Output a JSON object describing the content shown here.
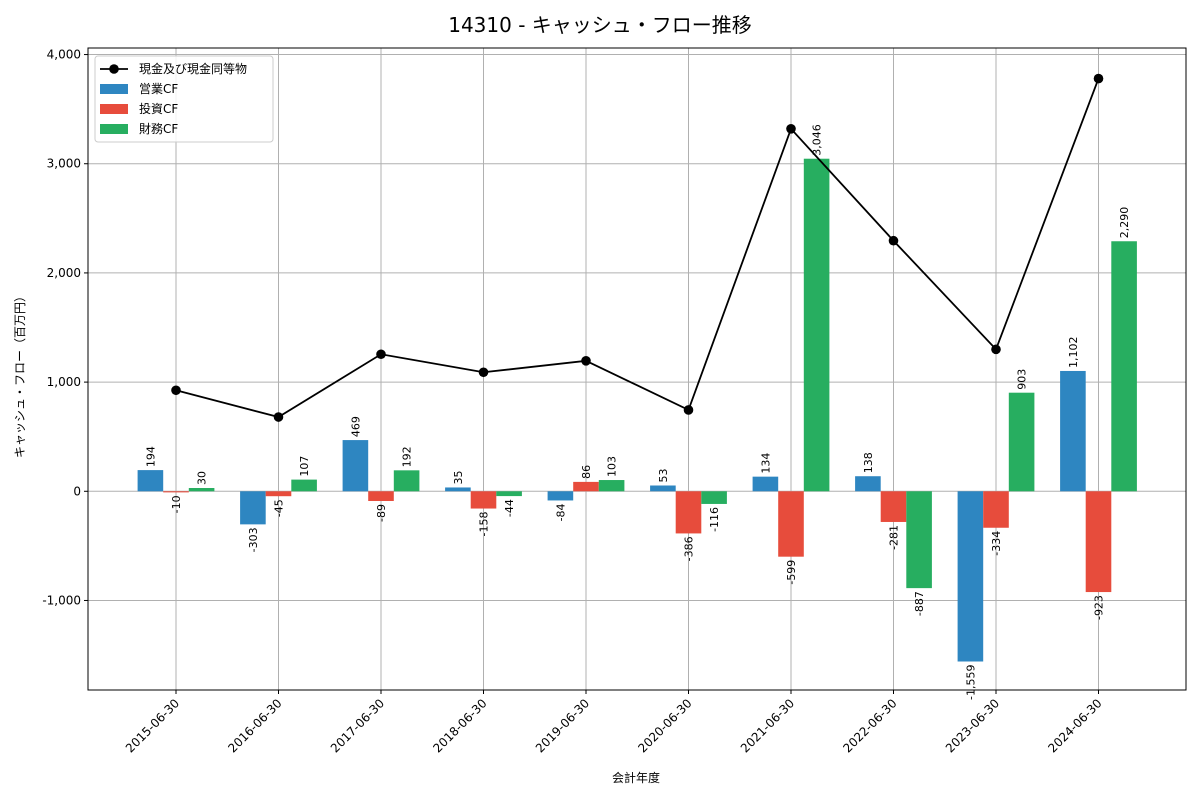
{
  "chart_data": {
    "type": "bar",
    "title": "14310 - キャッシュ・フロー推移",
    "xlabel": "会計年度",
    "ylabel": "キャッシュ・フロー（百万円）",
    "categories": [
      "2015-06-30",
      "2016-06-30",
      "2017-06-30",
      "2018-06-30",
      "2019-06-30",
      "2020-06-30",
      "2021-06-30",
      "2022-06-30",
      "2023-06-30",
      "2024-06-30"
    ],
    "series": [
      {
        "name": "営業CF",
        "kind": "bar",
        "color": "#2e86c1",
        "values": [
          194,
          -303,
          469,
          35,
          -84,
          53,
          134,
          138,
          -1559,
          1102
        ],
        "labels": [
          "194",
          "-303",
          "469",
          "35",
          "-84",
          "53",
          "134",
          "138",
          "-1,559",
          "1,102"
        ]
      },
      {
        "name": "投資CF",
        "kind": "bar",
        "color": "#e74c3c",
        "values": [
          -10,
          -45,
          -89,
          -158,
          86,
          -386,
          -599,
          -281,
          -334,
          -923
        ],
        "labels": [
          "-10",
          "-45",
          "-89",
          "-158",
          "86",
          "-386",
          "-599",
          "-281",
          "-334",
          "-923"
        ]
      },
      {
        "name": "財務CF",
        "kind": "bar",
        "color": "#27ae60",
        "values": [
          30,
          107,
          192,
          -44,
          103,
          -116,
          3046,
          -887,
          903,
          2290
        ],
        "labels": [
          "30",
          "107",
          "192",
          "-44",
          "103",
          "-116",
          "3,046",
          "-887",
          "903",
          "2,290"
        ]
      },
      {
        "name": "現金及び現金同等物",
        "kind": "line",
        "color": "#000000",
        "values": [
          925,
          680,
          1255,
          1090,
          1195,
          745,
          3320,
          2295,
          1300,
          3780
        ]
      }
    ],
    "ylim": [
      -1820,
      4060
    ],
    "yticks": [
      -1000,
      0,
      1000,
      2000,
      3000,
      4000
    ],
    "ytick_labels": [
      "-1,000",
      "0",
      "1,000",
      "2,000",
      "3,000",
      "4,000"
    ],
    "grid": true,
    "legend_position": "upper-left"
  }
}
